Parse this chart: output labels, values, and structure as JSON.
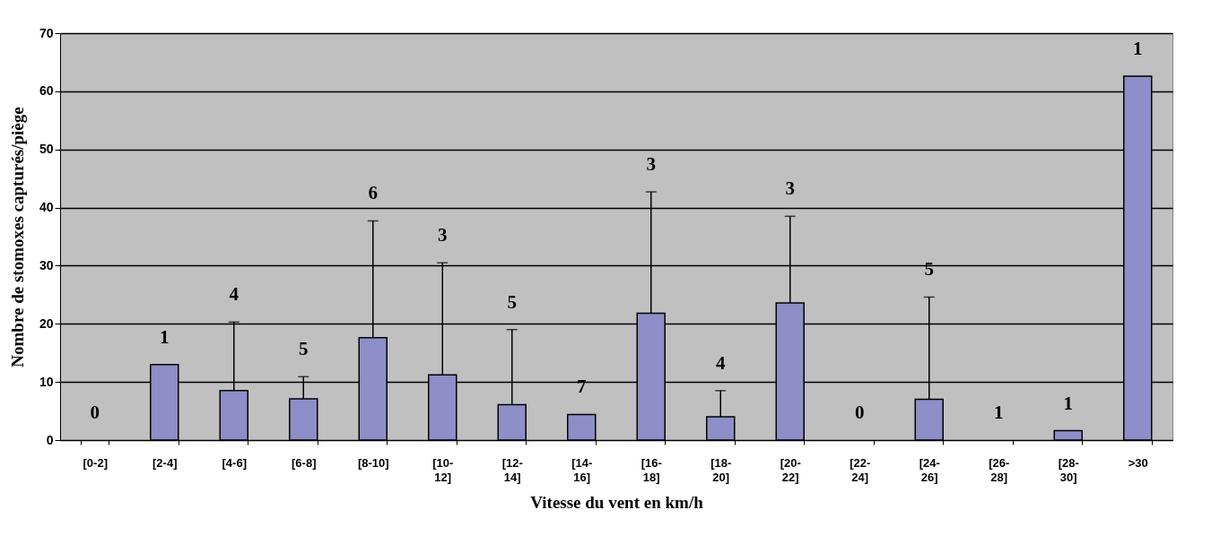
{
  "chart_data": {
    "type": "bar",
    "xlabel": "Vitesse du vent en km/h",
    "ylabel": "Nombre de stomoxes capturés/piège",
    "categories": [
      "[0-2]",
      "[2-4]",
      "[4-6]",
      "[6-8]",
      "[8-10]",
      "[10-12]",
      "[12-14]",
      "[14-16]",
      "[16-18]",
      "[18-20]",
      "[20-22]",
      "[22-24]",
      "[24-26]",
      "[26-28]",
      "[28-30]",
      ">30"
    ],
    "values": [
      0,
      13,
      8.5,
      7.1,
      17.6,
      11.2,
      6.1,
      4.4,
      21.8,
      4.0,
      23.6,
      0,
      7.0,
      0,
      1.6,
      62.6
    ],
    "errors": [
      null,
      null,
      [
        8.5,
        20.3
      ],
      [
        7.1,
        10.9
      ],
      [
        17.6,
        37.7
      ],
      [
        11.2,
        30.5
      ],
      [
        6.1,
        19.0
      ],
      null,
      [
        21.8,
        42.7
      ],
      [
        4.0,
        8.5
      ],
      [
        23.6,
        38.5
      ],
      null,
      [
        7.0,
        24.6
      ],
      null,
      null,
      null
    ],
    "annotations": [
      {
        "text": "0",
        "x": "[0-2]",
        "y": 0
      },
      {
        "text": "1",
        "x": "[2-4]",
        "y": 13
      },
      {
        "text": "4",
        "x": "[4-6]",
        "y": 20.3
      },
      {
        "text": "5",
        "x": "[6-8]",
        "y": 10.9
      },
      {
        "text": "6",
        "x": "[8-10]",
        "y": 37.7
      },
      {
        "text": "3",
        "x": "[10-12]",
        "y": 30.5
      },
      {
        "text": "5",
        "x": "[12-14]",
        "y": 19.0
      },
      {
        "text": "7",
        "x": "[14-16]",
        "y": 4.4
      },
      {
        "text": "3",
        "x": "[16-18]",
        "y": 42.7
      },
      {
        "text": "4",
        "x": "[18-20]",
        "y": 8.5
      },
      {
        "text": "3",
        "x": "[20-22]",
        "y": 38.5
      },
      {
        "text": "0",
        "x": "[22-24]",
        "y": 0
      },
      {
        "text": "5",
        "x": "[24-26]",
        "y": 24.6
      },
      {
        "text": "1",
        "x": "[26-28]",
        "y": 0
      },
      {
        "text": "1",
        "x": "[28-30]",
        "y": 1.6
      },
      {
        "text": "1",
        "x": ">30",
        "y": 62.6
      }
    ],
    "color": "#8e8ec8",
    "ylim": [
      0,
      70
    ],
    "yticks": [
      0,
      10,
      20,
      30,
      40,
      50,
      60,
      70
    ],
    "grid": "y"
  }
}
